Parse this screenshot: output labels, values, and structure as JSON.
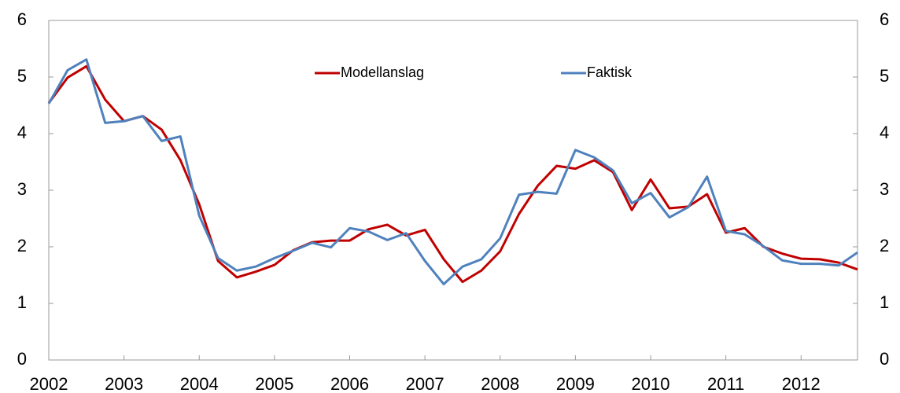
{
  "chart_data": {
    "type": "line",
    "categories": [
      "2002",
      null,
      null,
      null,
      "2003",
      null,
      null,
      null,
      "2004",
      null,
      null,
      null,
      "2005",
      null,
      null,
      null,
      "2006",
      null,
      null,
      null,
      "2007",
      null,
      null,
      null,
      "2008",
      null,
      null,
      null,
      "2009",
      null,
      null,
      null,
      "2010",
      null,
      null,
      null,
      "2011",
      null,
      null,
      null,
      "2012",
      null,
      null,
      null
    ],
    "series": [
      {
        "name": "Modellanslag",
        "color": "#c00000",
        "values": [
          4.54,
          4.99,
          5.19,
          4.6,
          4.22,
          4.31,
          4.07,
          3.53,
          2.75,
          1.75,
          1.46,
          1.56,
          1.68,
          1.94,
          2.08,
          2.11,
          2.11,
          2.31,
          2.39,
          2.2,
          2.3,
          1.78,
          1.38,
          1.58,
          1.92,
          2.58,
          3.08,
          3.43,
          3.38,
          3.53,
          3.32,
          2.65,
          3.19,
          2.68,
          2.71,
          2.93,
          2.25,
          2.33,
          2.0,
          1.88,
          1.79,
          1.78,
          1.72,
          1.6
        ]
      },
      {
        "name": "Faktisk",
        "color": "#4f81bd",
        "values": [
          4.53,
          5.12,
          5.31,
          4.19,
          4.22,
          4.31,
          3.87,
          3.95,
          2.55,
          1.8,
          1.58,
          1.65,
          1.8,
          1.93,
          2.07,
          1.99,
          2.33,
          2.27,
          2.12,
          2.24,
          1.75,
          1.34,
          1.65,
          1.78,
          2.15,
          2.92,
          2.97,
          2.94,
          3.71,
          3.58,
          3.35,
          2.77,
          2.95,
          2.52,
          2.7,
          3.24,
          2.28,
          2.22,
          2.01,
          1.76,
          1.7,
          1.7,
          1.67,
          1.9
        ]
      }
    ],
    "ylim": [
      0,
      6
    ],
    "yticks": [
      0,
      1,
      2,
      3,
      4,
      5,
      6
    ],
    "y2lim": [
      0,
      6
    ],
    "y2ticks": [
      0,
      1,
      2,
      3,
      4,
      5,
      6
    ],
    "legend": "top"
  }
}
